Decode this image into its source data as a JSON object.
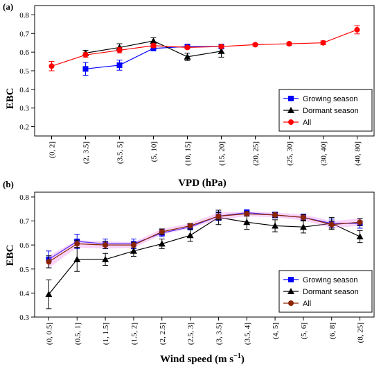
{
  "chart_data": [
    {
      "type": "line",
      "panel_label": "(a)",
      "xlabel": "VPD (hPa)",
      "ylabel": "EBC",
      "ylim": [
        0.15,
        0.85
      ],
      "yticks": [
        0.2,
        0.3,
        0.4,
        0.5,
        0.6,
        0.7,
        0.8
      ],
      "ytick_labels": [
        "0.2",
        "0.3",
        "0.4",
        "0.5",
        "0.6",
        "0.7",
        "0.8"
      ],
      "categories": [
        "(0, 2]",
        "(2, 3.5]",
        "(3.5, 5]",
        "(5, 10]",
        "(10, 15]",
        "(15, 20]",
        "(20, 25]",
        "(25, 30]",
        "(30, 40]",
        "(40, 80]"
      ],
      "legend_position": "bottom-right",
      "series": [
        {
          "name": "Growing season",
          "color": "#0000ff",
          "marker": "square",
          "values": [
            null,
            0.51,
            0.53,
            0.62,
            0.63,
            0.63,
            null,
            null,
            null,
            null
          ],
          "errors": [
            null,
            0.035,
            0.027,
            0.012,
            0.01,
            0.008,
            null,
            null,
            null,
            null
          ]
        },
        {
          "name": "Dormant season",
          "color": "#000000",
          "marker": "triangle",
          "values": [
            null,
            0.595,
            0.625,
            0.66,
            0.575,
            0.605,
            null,
            null,
            null,
            null
          ],
          "errors": [
            null,
            0.015,
            0.02,
            0.018,
            0.02,
            0.032,
            null,
            null,
            null,
            null
          ]
        },
        {
          "name": "All",
          "color": "#ff0000",
          "marker": "circle",
          "values": [
            0.525,
            0.585,
            0.61,
            0.635,
            0.625,
            0.63,
            0.64,
            0.645,
            0.65,
            0.72
          ],
          "errors": [
            0.025,
            0.012,
            0.014,
            0.01,
            0.008,
            0.007,
            0.007,
            0.008,
            0.01,
            0.022
          ]
        }
      ]
    },
    {
      "type": "line",
      "panel_label": "(b)",
      "xlabel": "Wind speed (m s",
      "xlabel_sup": "−1",
      "xlabel_end": ")",
      "ylabel": "EBC",
      "ylim": [
        0.3,
        0.82
      ],
      "yticks": [
        0.3,
        0.4,
        0.5,
        0.6,
        0.7,
        0.8
      ],
      "ytick_labels": [
        "0.3",
        "0.4",
        "0.5",
        "0.6",
        "0.7",
        "0.8"
      ],
      "categories": [
        "(0, 0.5]",
        "(0.5, 1]",
        "(1, 1.5]",
        "(1.5, 2]",
        "(2, 2.5]",
        "(2.5, 3]",
        "(3, 3.5]",
        "(3.5, 4]",
        "(4, 5]",
        "(5, 6]",
        "(6, 8]",
        "(8, 25]"
      ],
      "legend_position": "bottom-right",
      "series": [
        {
          "name": "Growing season",
          "color": "#0000ff",
          "marker": "square",
          "values": [
            0.54,
            0.615,
            0.605,
            0.605,
            0.65,
            0.675,
            0.72,
            0.735,
            0.725,
            0.715,
            0.69,
            0.69
          ],
          "errors": [
            0.035,
            0.03,
            0.02,
            0.02,
            0.015,
            0.012,
            0.018,
            0.012,
            0.012,
            0.014,
            0.018,
            0.02
          ]
        },
        {
          "name": "Dormant season",
          "color": "#000000",
          "marker": "triangle",
          "values": [
            0.395,
            0.54,
            0.54,
            0.575,
            0.605,
            0.64,
            0.715,
            0.695,
            0.68,
            0.675,
            0.69,
            0.635
          ],
          "errors": [
            0.06,
            0.05,
            0.025,
            0.022,
            0.02,
            0.025,
            0.03,
            0.03,
            0.025,
            0.025,
            0.025,
            0.025
          ]
        },
        {
          "name": "All",
          "color": "#8b2500",
          "marker": "circle",
          "band_color": "#ee82ee",
          "values": [
            0.53,
            0.605,
            0.6,
            0.6,
            0.655,
            0.68,
            0.72,
            0.73,
            0.725,
            0.715,
            0.685,
            0.695
          ],
          "errors": [
            0.025,
            0.015,
            0.015,
            0.012,
            0.012,
            0.01,
            0.015,
            0.01,
            0.01,
            0.012,
            0.015,
            0.015
          ]
        }
      ]
    }
  ]
}
